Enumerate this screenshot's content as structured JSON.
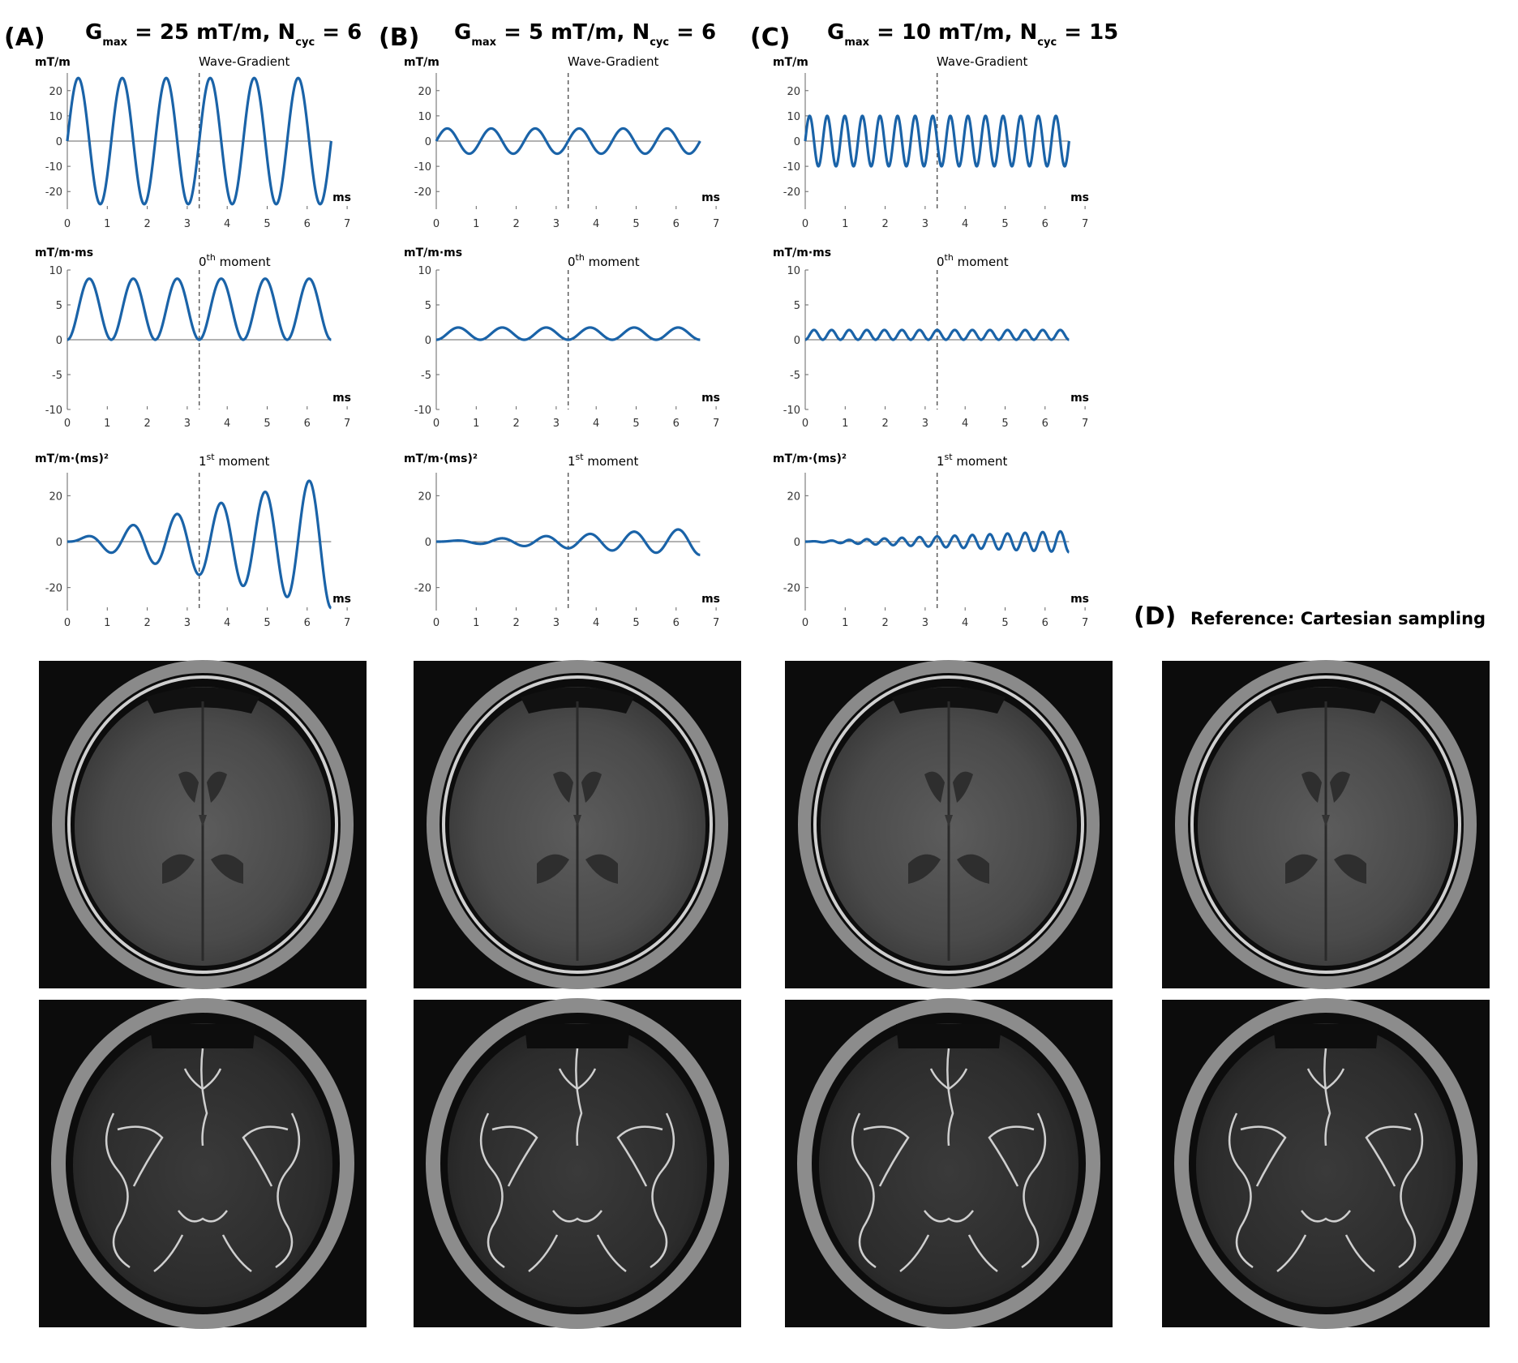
{
  "panels": [
    {
      "label": "(A)",
      "title": {
        "g": "G",
        "g_sub": "max",
        "mid": " = 25 mT/m, N",
        "n_sub": "cyc",
        "end": " = 6"
      },
      "gmax": 25,
      "ncyc": 6
    },
    {
      "label": "(B)",
      "title": {
        "g": "G",
        "g_sub": "max",
        "mid": " = 5 mT/m, N",
        "n_sub": "cyc",
        "end": " = 6"
      },
      "gmax": 5,
      "ncyc": 6
    },
    {
      "label": "(C)",
      "title": {
        "g": "G",
        "g_sub": "max",
        "mid": " = 10 mT/m, N",
        "n_sub": "cyc",
        "end": " = 15"
      },
      "gmax": 10,
      "ncyc": 15
    }
  ],
  "reference": {
    "label": "(D)",
    "title": "Reference: Cartesian sampling"
  },
  "plot_rows": [
    {
      "ylabel": "mT/m",
      "title": "Wave-Gradient",
      "title_sup": "",
      "title_rest": "",
      "yticks": [
        "20",
        "10",
        "0",
        "-10",
        "-20"
      ]
    },
    {
      "ylabel": "mT/m·ms",
      "title": "0",
      "title_sup": "th",
      "title_rest": " moment",
      "yticks": [
        "10",
        "5",
        "0",
        "-5",
        "-10"
      ]
    },
    {
      "ylabel": "mT/m·(ms)²",
      "title": "1",
      "title_sup": "st",
      "title_rest": " moment",
      "yticks": [
        "20",
        "0",
        "-20"
      ]
    }
  ],
  "xticks": [
    "0",
    "1",
    "2",
    "3",
    "4",
    "5",
    "6",
    "7"
  ],
  "xlabel": "ms",
  "colors": {
    "curve": "#1a63a8",
    "image_background": "#0c0c0c"
  },
  "chart_data": [
    {
      "type": "line",
      "panel": "A",
      "plot": "Wave-Gradient",
      "ylim": [
        -27,
        27
      ],
      "xlim": [
        0,
        7
      ],
      "t_end": 6.6,
      "function": "gradient",
      "gmax": 25,
      "ncyc": 6,
      "dashed_x": 3.3
    },
    {
      "type": "line",
      "panel": "A",
      "plot": "0th moment",
      "ylim": [
        -10,
        10
      ],
      "xlim": [
        0,
        7
      ],
      "t_end": 6.6,
      "function": "moment0",
      "gmax": 25,
      "ncyc": 6,
      "dashed_x": 3.3
    },
    {
      "type": "line",
      "panel": "A",
      "plot": "1st moment",
      "ylim": [
        -30,
        30
      ],
      "xlim": [
        0,
        7
      ],
      "t_end": 6.6,
      "function": "moment1",
      "gmax": 25,
      "ncyc": 6,
      "dashed_x": 3.3
    },
    {
      "type": "line",
      "panel": "B",
      "plot": "Wave-Gradient",
      "ylim": [
        -27,
        27
      ],
      "xlim": [
        0,
        7
      ],
      "t_end": 6.6,
      "function": "gradient",
      "gmax": 5,
      "ncyc": 6,
      "dashed_x": 3.3
    },
    {
      "type": "line",
      "panel": "B",
      "plot": "0th moment",
      "ylim": [
        -10,
        10
      ],
      "xlim": [
        0,
        7
      ],
      "t_end": 6.6,
      "function": "moment0",
      "gmax": 5,
      "ncyc": 6,
      "dashed_x": 3.3
    },
    {
      "type": "line",
      "panel": "B",
      "plot": "1st moment",
      "ylim": [
        -30,
        30
      ],
      "xlim": [
        0,
        7
      ],
      "t_end": 6.6,
      "function": "moment1",
      "gmax": 5,
      "ncyc": 6,
      "dashed_x": 3.3
    },
    {
      "type": "line",
      "panel": "C",
      "plot": "Wave-Gradient",
      "ylim": [
        -27,
        27
      ],
      "xlim": [
        0,
        7
      ],
      "t_end": 6.6,
      "function": "gradient",
      "gmax": 10,
      "ncyc": 15,
      "dashed_x": 3.3
    },
    {
      "type": "line",
      "panel": "C",
      "plot": "0th moment",
      "ylim": [
        -10,
        10
      ],
      "xlim": [
        0,
        7
      ],
      "t_end": 6.6,
      "function": "moment0",
      "gmax": 10,
      "ncyc": 15,
      "dashed_x": 3.3
    },
    {
      "type": "line",
      "panel": "C",
      "plot": "1st moment",
      "ylim": [
        -30,
        30
      ],
      "xlim": [
        0,
        7
      ],
      "t_end": 6.6,
      "function": "moment1",
      "gmax": 10,
      "ncyc": 15,
      "dashed_x": 3.3
    }
  ]
}
